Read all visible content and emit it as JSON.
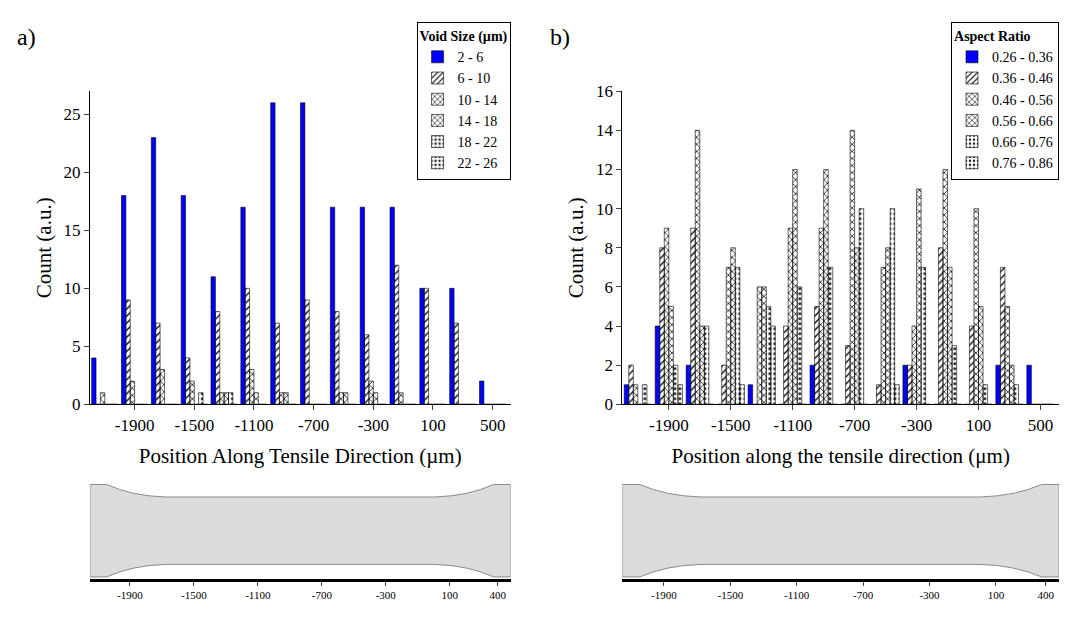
{
  "chart_data": [
    {
      "type": "bar",
      "panel": "a)",
      "x": [
        -2100,
        -1900,
        -1700,
        -1500,
        -1300,
        -1100,
        -900,
        -700,
        -500,
        -300,
        -100,
        100,
        300,
        500
      ],
      "xlim": [
        -2200,
        620
      ],
      "xticks": [
        -1900,
        -1500,
        -1100,
        -700,
        -300,
        100,
        500
      ],
      "ylim": [
        0,
        27
      ],
      "yticks": [
        0,
        5,
        10,
        15,
        20,
        25
      ],
      "x_label": "Position Along Tensile Direction (µm)",
      "y_label": "Count (a.u.)",
      "legend_title": "Void Size (µm)",
      "legend": "top right",
      "series": [
        {
          "name": "2 - 6",
          "color": "#0000ff",
          "values": [
            4,
            18,
            23,
            18,
            11,
            17,
            26,
            26,
            17,
            17,
            17,
            10,
            10,
            2
          ]
        },
        {
          "name": "6 - 10",
          "color": "#f26522",
          "values": [
            0,
            9,
            7,
            4,
            8,
            10,
            7,
            9,
            8,
            6,
            12,
            10,
            7,
            0
          ]
        },
        {
          "name": "10 - 14",
          "color": "#f2f200",
          "values": [
            1,
            2,
            3,
            2,
            1,
            3,
            1,
            0,
            1,
            2,
            1,
            0,
            0,
            0
          ]
        },
        {
          "name": "14 - 18",
          "color": "#22a84a",
          "values": [
            0,
            0,
            0,
            0,
            1,
            1,
            1,
            0,
            1,
            1,
            0,
            0,
            0,
            0
          ]
        },
        {
          "name": "18 - 22",
          "color": "#2f80e0",
          "values": [
            0,
            0,
            0,
            1,
            1,
            0,
            0,
            0,
            0,
            0,
            0,
            0,
            0,
            0
          ]
        },
        {
          "name": "22 - 26",
          "color": "#cc1010",
          "values": [
            0,
            0,
            0,
            0,
            0,
            0,
            0,
            0,
            0,
            0,
            0,
            0,
            0,
            0
          ]
        }
      ],
      "scale": {
        "xlim": [
          -2150,
          480
        ],
        "xticks": [
          -1900,
          -1500,
          -1100,
          -700,
          -300,
          100,
          400
        ]
      }
    },
    {
      "type": "bar",
      "panel": "b)",
      "x": [
        -2100,
        -1900,
        -1700,
        -1500,
        -1300,
        -1100,
        -900,
        -700,
        -500,
        -300,
        -100,
        100,
        300,
        500
      ],
      "xlim": [
        -2200,
        620
      ],
      "xticks": [
        -1900,
        -1500,
        -1100,
        -700,
        -300,
        100,
        500
      ],
      "ylim": [
        0,
        16
      ],
      "yticks": [
        0,
        2,
        4,
        6,
        8,
        10,
        12,
        14,
        16
      ],
      "x_label": "Position along the tensile direction (μm)",
      "y_label": "Count (a.u.)",
      "legend_title": "Aspect Ratio",
      "legend": "top right",
      "series": [
        {
          "name": "0.26 - 0.36",
          "color": "#0000ff",
          "values": [
            1,
            4,
            2,
            0,
            1,
            0,
            2,
            0,
            0,
            2,
            0,
            0,
            2,
            2
          ]
        },
        {
          "name": "0.36 - 0.46",
          "color": "#f26522",
          "values": [
            2,
            8,
            9,
            2,
            0,
            4,
            5,
            3,
            1,
            2,
            8,
            4,
            7,
            0
          ]
        },
        {
          "name": "0.46 - 0.56",
          "color": "#f2f200",
          "values": [
            1,
            9,
            14,
            7,
            6,
            9,
            9,
            14,
            7,
            4,
            12,
            10,
            5,
            0
          ]
        },
        {
          "name": "0.56 - 0.66",
          "color": "#22a84a",
          "values": [
            0,
            5,
            4,
            8,
            6,
            12,
            12,
            8,
            8,
            11,
            7,
            5,
            2,
            0
          ]
        },
        {
          "name": "0.66 - 0.76",
          "color": "#2f80e0",
          "values": [
            1,
            2,
            4,
            7,
            5,
            6,
            7,
            10,
            10,
            7,
            3,
            1,
            1,
            0
          ]
        },
        {
          "name": "0.76 - 0.86",
          "color": "#cc1010",
          "values": [
            0,
            1,
            0,
            1,
            4,
            0,
            0,
            0,
            1,
            0,
            0,
            0,
            0,
            0
          ]
        }
      ],
      "scale": {
        "xlim": [
          -2150,
          480
        ],
        "xticks": [
          -1900,
          -1500,
          -1100,
          -700,
          -300,
          100,
          400
        ]
      }
    }
  ]
}
